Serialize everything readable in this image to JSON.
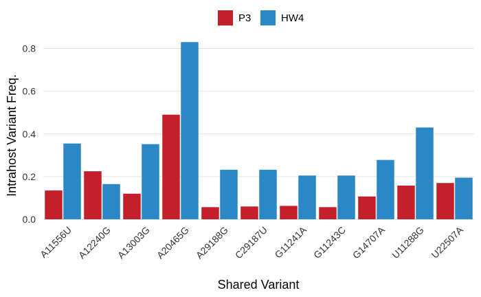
{
  "chart_data": {
    "type": "bar",
    "categories": [
      "A11556U",
      "A12240G",
      "A13003G",
      "A20465G",
      "A29188G",
      "C29187U",
      "G11241A",
      "G11243C",
      "G14707A",
      "U11288G",
      "U22507A"
    ],
    "series": [
      {
        "name": "P3",
        "color": "#c4202b",
        "values": [
          0.135,
          0.225,
          0.12,
          0.49,
          0.057,
          0.06,
          0.063,
          0.057,
          0.107,
          0.158,
          0.17
        ]
      },
      {
        "name": "HW4",
        "color": "#2b87c5",
        "values": [
          0.355,
          0.165,
          0.352,
          0.83,
          0.232,
          0.232,
          0.205,
          0.205,
          0.278,
          0.43,
          0.195
        ]
      }
    ],
    "xlabel": "Shared Variant",
    "ylabel": "Intrahost Variant Freq.",
    "ylim": [
      0,
      0.85
    ],
    "yticks": [
      "0.0",
      "0.2",
      "0.4",
      "0.6",
      "0.8"
    ],
    "grid": true,
    "legend_position": "top"
  }
}
